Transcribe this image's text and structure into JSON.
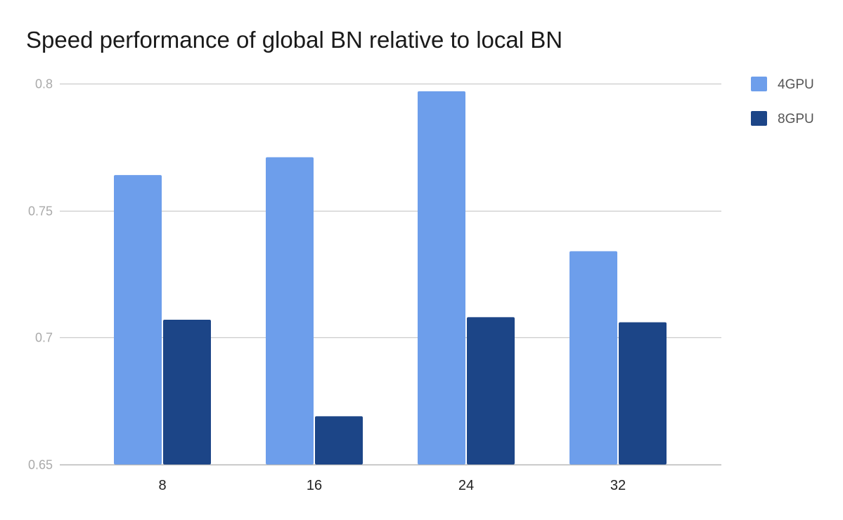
{
  "chart_data": {
    "type": "bar",
    "title": "Speed performance of global BN relative to local BN",
    "xlabel": "",
    "ylabel": "",
    "categories": [
      "8",
      "16",
      "24",
      "32"
    ],
    "series": [
      {
        "name": "4GPU",
        "color": "#6d9eeb",
        "values": [
          0.764,
          0.771,
          0.797,
          0.734
        ]
      },
      {
        "name": "8GPU",
        "color": "#1c4587",
        "values": [
          0.707,
          0.669,
          0.708,
          0.706
        ]
      }
    ],
    "ylim": [
      0.65,
      0.8
    ],
    "yticks": [
      0.65,
      0.7,
      0.75,
      0.8
    ],
    "ytick_labels": [
      "0.65",
      "0.7",
      "0.75",
      "0.8"
    ],
    "grid": true,
    "legend_position": "right"
  }
}
